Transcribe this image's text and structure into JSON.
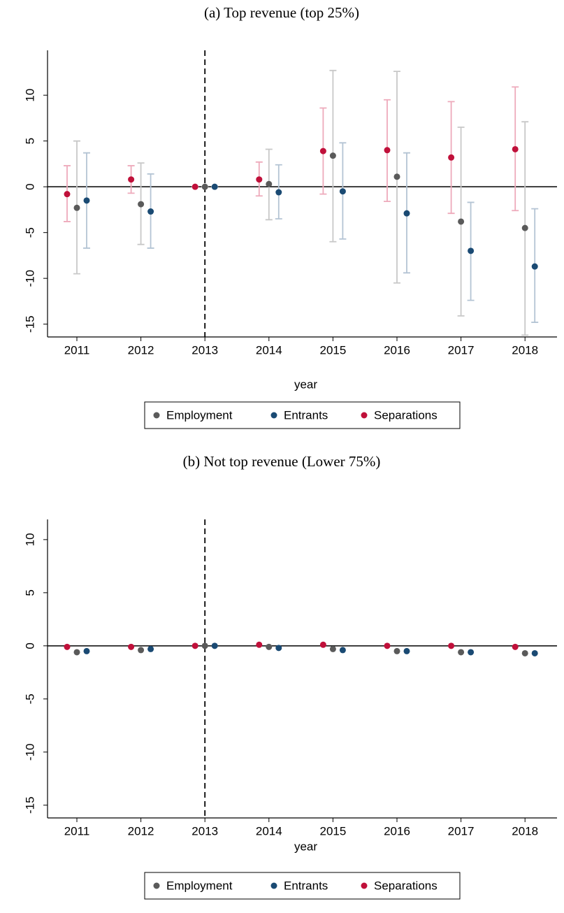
{
  "chart_data": [
    {
      "type": "scatter",
      "title": "(a) Top revenue (top 25%)",
      "xlabel": "year",
      "categories": [
        "2011",
        "2012",
        "2013",
        "2014",
        "2015",
        "2016",
        "2017",
        "2018"
      ],
      "series": [
        {
          "name": "Employment",
          "color": "#5a5a5a",
          "ci_color": "#c8c8c8",
          "values": [
            -2.3,
            -1.9,
            0,
            0.3,
            3.4,
            1.1,
            -3.8,
            -4.5
          ],
          "ci_low": [
            -9.5,
            -6.3,
            0,
            -3.6,
            -6.0,
            -10.5,
            -14.1,
            -16.2
          ],
          "ci_high": [
            5.0,
            2.6,
            0,
            4.1,
            12.7,
            12.6,
            6.5,
            7.1
          ]
        },
        {
          "name": "Entrants",
          "color": "#1a4a73",
          "ci_color": "#b4c4d4",
          "values": [
            -1.5,
            -2.7,
            0,
            -0.6,
            -0.5,
            -2.9,
            -7.0,
            -8.7
          ],
          "ci_low": [
            -6.7,
            -6.7,
            0,
            -3.5,
            -5.7,
            -9.4,
            -12.4,
            -14.8
          ],
          "ci_high": [
            3.7,
            1.4,
            0,
            2.4,
            4.8,
            3.7,
            -1.7,
            -2.4
          ]
        },
        {
          "name": "Separations",
          "color": "#c0103a",
          "ci_color": "#eeaabb",
          "values": [
            -0.8,
            0.8,
            0,
            0.8,
            3.9,
            4.0,
            3.2,
            4.1
          ],
          "ci_low": [
            -3.8,
            -0.7,
            0,
            -1.0,
            -0.8,
            -1.6,
            -2.9,
            -2.6
          ],
          "ci_high": [
            2.3,
            2.3,
            0,
            2.7,
            8.6,
            9.5,
            9.3,
            10.9
          ]
        }
      ],
      "ylim": [
        -16.4,
        14.9
      ],
      "yticks": [
        -15,
        -10,
        -5,
        0,
        5,
        10
      ],
      "hline": 0,
      "vline": "2013",
      "legend": "bottom"
    },
    {
      "type": "scatter",
      "title": "(b) Not top revenue (Lower 75%)",
      "xlabel": "year",
      "categories": [
        "2011",
        "2012",
        "2013",
        "2014",
        "2015",
        "2016",
        "2017",
        "2018"
      ],
      "series": [
        {
          "name": "Employment",
          "color": "#5a5a5a",
          "values": [
            -0.6,
            -0.4,
            0,
            -0.1,
            -0.3,
            -0.5,
            -0.6,
            -0.7
          ]
        },
        {
          "name": "Entrants",
          "color": "#1a4a73",
          "values": [
            -0.5,
            -0.3,
            0,
            -0.2,
            -0.4,
            -0.5,
            -0.6,
            -0.7
          ]
        },
        {
          "name": "Separations",
          "color": "#c0103a",
          "values": [
            -0.1,
            -0.1,
            0,
            0.1,
            0.1,
            0.0,
            0.0,
            -0.1
          ]
        }
      ],
      "ylim": [
        -16.2,
        11.9
      ],
      "yticks": [
        -15,
        -10,
        -5,
        0,
        5,
        10
      ],
      "hline": 0,
      "vline": "2013",
      "legend": "bottom"
    }
  ]
}
